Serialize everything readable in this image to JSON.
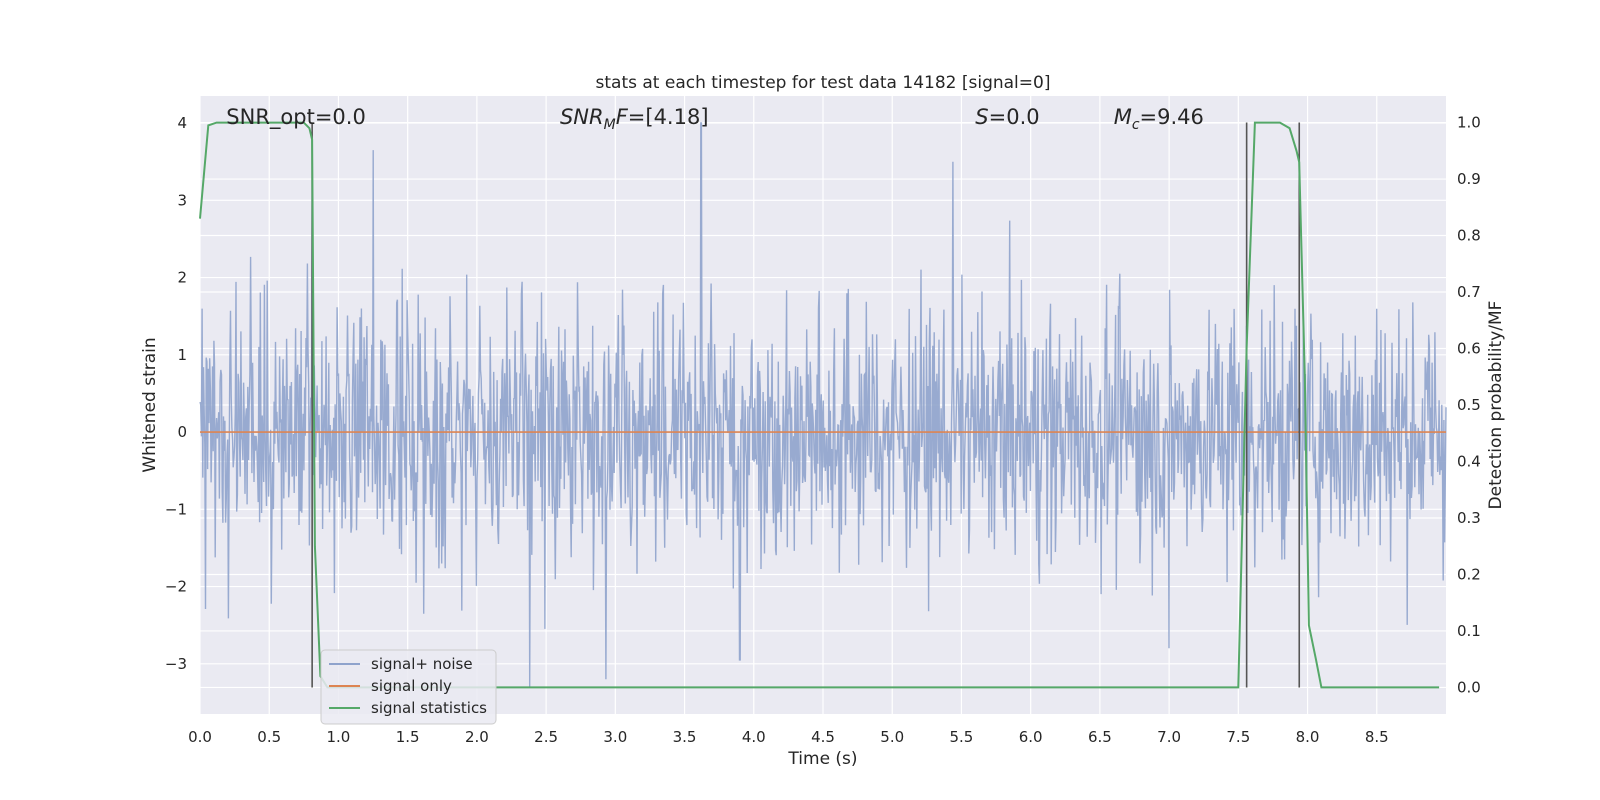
{
  "chart_data": {
    "type": "line",
    "title": "stats at each timestep for test data 14182 [signal=0]",
    "xlabel": "Time (s)",
    "ylabel": "Whitened strain",
    "y2label": "Detection probability/MF",
    "xlim": [
      0.0,
      9.0
    ],
    "ylim": [
      -3.65,
      4.35
    ],
    "y2lim": [
      -0.047,
      1.047
    ],
    "x_ticks": [
      0.0,
      0.5,
      1.0,
      1.5,
      2.0,
      2.5,
      3.0,
      3.5,
      4.0,
      4.5,
      5.0,
      5.5,
      6.0,
      6.5,
      7.0,
      7.5,
      8.0,
      8.5
    ],
    "x_tick_labels": [
      "0.0",
      "0.5",
      "1.0",
      "1.5",
      "2.0",
      "2.5",
      "3.0",
      "3.5",
      "4.0",
      "4.5",
      "5.0",
      "5.5",
      "6.0",
      "6.5",
      "7.0",
      "7.5",
      "8.0",
      "8.5"
    ],
    "y_ticks": [
      -3,
      -2,
      -1,
      0,
      1,
      2,
      3,
      4
    ],
    "y_tick_labels": [
      "−3",
      "−2",
      "−1",
      "0",
      "1",
      "2",
      "3",
      "4"
    ],
    "y2_ticks": [
      0.0,
      0.1,
      0.2,
      0.3,
      0.4,
      0.5,
      0.6,
      0.7,
      0.8,
      0.9,
      1.0
    ],
    "y2_tick_labels": [
      "0.0",
      "0.1",
      "0.2",
      "0.3",
      "0.4",
      "0.5",
      "0.6",
      "0.7",
      "0.8",
      "0.9",
      "1.0"
    ],
    "grid": true,
    "legend_position": "lower-left",
    "annotations": [
      {
        "id": "snr-opt",
        "text": "SNR_opt=0.0",
        "x": 0.19
      },
      {
        "id": "snr-mf",
        "prefix": "SNR",
        "sub": "M",
        "suffix": "F=[4.18]",
        "x": 2.6
      },
      {
        "id": "s-stat",
        "prefix": "S",
        "sub": "",
        "suffix": "=0.0",
        "x": 5.6
      },
      {
        "id": "mc",
        "prefix": "M",
        "sub": "c",
        "suffix": "=9.46",
        "x": 6.6
      }
    ],
    "series": [
      {
        "name": "signal+ noise",
        "axis": "left",
        "color": "#8fa3cc",
        "kind": "noise",
        "n_points": 1800,
        "std": 0.8,
        "envelope": [
          -3.35,
          4.0
        ],
        "peaks": [
          [
            0.81,
            3.4
          ],
          [
            1.25,
            3.65
          ],
          [
            3.62,
            4.0
          ],
          [
            5.44,
            3.5
          ],
          [
            2.38,
            -3.3
          ],
          [
            2.93,
            -3.2
          ],
          [
            3.9,
            -2.95
          ],
          [
            7.0,
            -2.8
          ]
        ]
      },
      {
        "name": "signal only",
        "axis": "left",
        "color": "#dd8452",
        "x": [
          0.0,
          9.0
        ],
        "y": [
          0.0,
          0.0
        ]
      },
      {
        "name": "signal statistics",
        "axis": "right",
        "color": "#55a868",
        "x": [
          0.0,
          0.06,
          0.12,
          0.2,
          0.4,
          0.6,
          0.75,
          0.79,
          0.81,
          0.83,
          0.87,
          0.92,
          1.0,
          2.0,
          3.0,
          4.0,
          5.0,
          6.0,
          7.0,
          7.5,
          7.56,
          7.62,
          7.7,
          7.8,
          7.87,
          7.92,
          7.94,
          7.98,
          8.01,
          8.06,
          8.1,
          8.4,
          8.95
        ],
        "y": [
          0.83,
          0.995,
          1.0,
          1.0,
          1.0,
          1.0,
          1.0,
          0.99,
          0.97,
          0.25,
          0.02,
          0.0,
          0.0,
          0.0,
          0.0,
          0.0,
          0.0,
          0.0,
          0.0,
          0.0,
          0.6,
          1.0,
          1.0,
          1.0,
          0.99,
          0.95,
          0.93,
          0.55,
          0.11,
          0.05,
          0.0,
          0.0,
          0.0
        ]
      }
    ],
    "vlines": [
      0.81,
      7.56,
      7.94
    ],
    "vline_color": "#555555",
    "vline_range": [
      0.0,
      1.0
    ]
  }
}
